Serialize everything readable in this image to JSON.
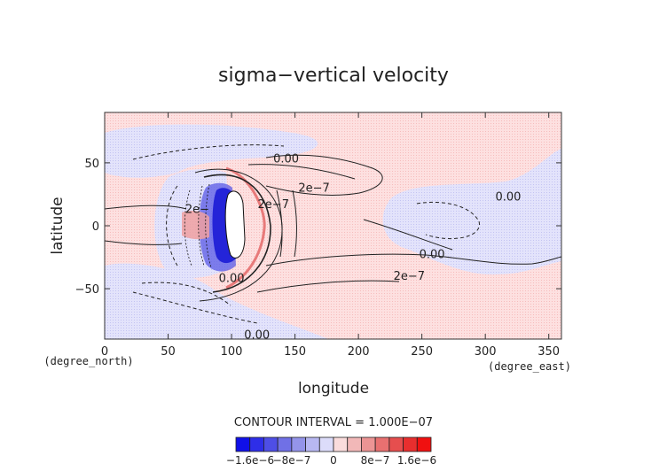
{
  "chart_data": {
    "type": "heatmap",
    "title": "sigma−vertical velocity",
    "xlabel": "longitude",
    "ylabel": "latitude",
    "x_unit": "(degree_east)",
    "y_unit": "(degree_north)",
    "xlim": [
      0,
      360
    ],
    "ylim": [
      -90,
      90
    ],
    "x_ticks": [
      "0",
      "50",
      "100",
      "150",
      "200",
      "250",
      "300",
      "350"
    ],
    "y_ticks": [
      "50",
      "0",
      "−50"
    ],
    "x_tick_values": [
      0,
      50,
      100,
      150,
      200,
      250,
      300,
      350
    ],
    "y_tick_values": [
      50,
      0,
      -50
    ],
    "contour_interval_text": "CONTOUR INTERVAL = 1.000E−07",
    "contour_labels": [
      {
        "text": "0.00",
        "lon": 143,
        "lat": 53
      },
      {
        "text": "2e−7",
        "lon": 165,
        "lat": 30
      },
      {
        "text": "2e−",
        "lon": 73,
        "lat": 13
      },
      {
        "text": "2e−7",
        "lon": 133,
        "lat": 17
      },
      {
        "text": "0.00",
        "lon": 318,
        "lat": 23
      },
      {
        "text": "0.00",
        "lon": 258,
        "lat": -23
      },
      {
        "text": "2e−7",
        "lon": 240,
        "lat": -40
      },
      {
        "text": "0.00",
        "lon": 100,
        "lat": -42
      },
      {
        "text": "0.00",
        "lon": 120,
        "lat": -87
      }
    ],
    "colorbar": {
      "colors": [
        "#1010e8",
        "#2e2ee8",
        "#4e4ee6",
        "#7070e6",
        "#9494ea",
        "#b8b8f2",
        "#dcdcfa",
        "#fadcdc",
        "#f2b8b8",
        "#ec9494",
        "#e87070",
        "#e64e4e",
        "#e82e2e",
        "#f01010"
      ],
      "tick_labels": [
        "−1.6e−6",
        "−8e−7",
        "0",
        "8e−7",
        "1.6e−6"
      ]
    },
    "colors": {
      "positive_fill": "#fde0e0",
      "negative_fill": "#e3e3fb",
      "strong_positive": "#e88080",
      "strong_negative": "#3a3ae0",
      "axis": "#333333"
    }
  }
}
